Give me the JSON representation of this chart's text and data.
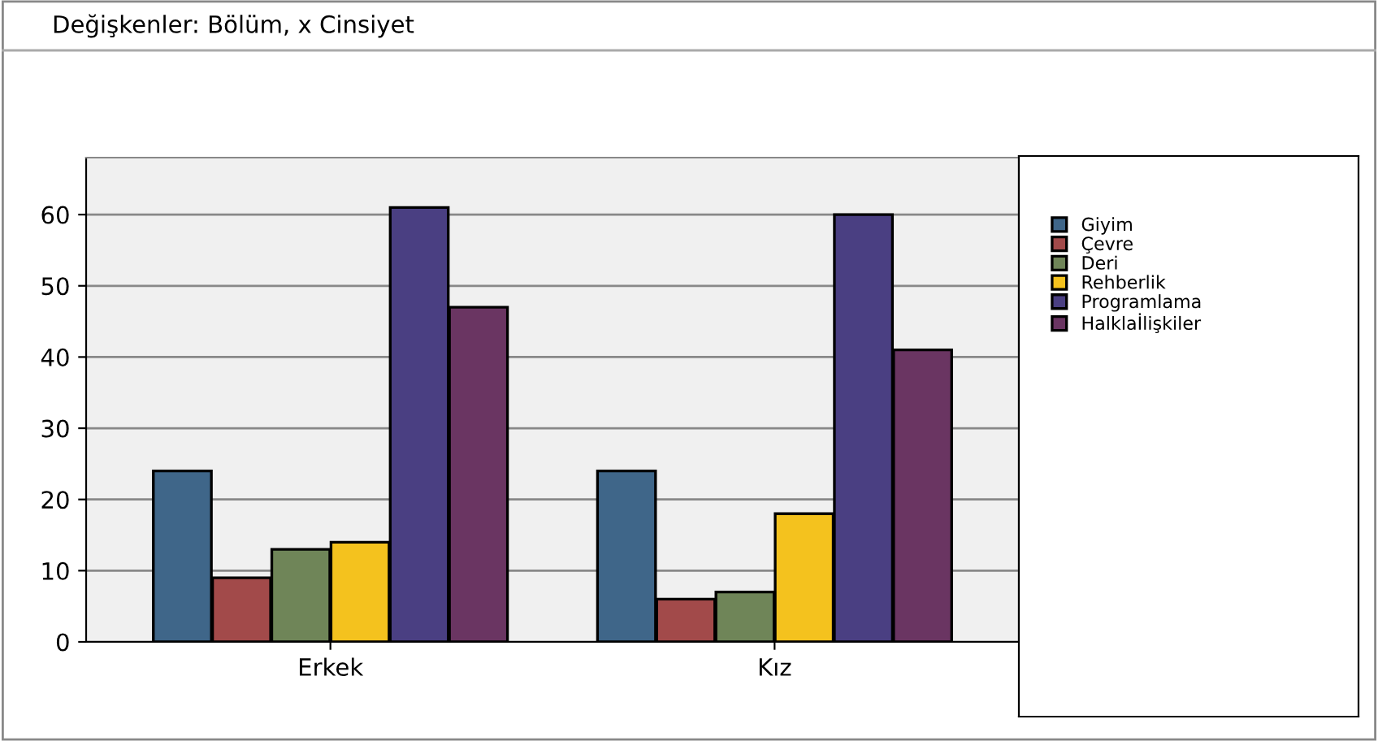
{
  "chart_data": {
    "type": "bar",
    "title": "Değişkenler: Bölüm, x Cinsiyet",
    "categories": [
      "Erkek",
      "Kız"
    ],
    "series": [
      {
        "name": "Giyim",
        "color": "#3f6689",
        "values": [
          24,
          24
        ]
      },
      {
        "name": "Çevre",
        "color": "#a24a4a",
        "values": [
          9,
          6
        ]
      },
      {
        "name": "Deri",
        "color": "#6f8558",
        "values": [
          13,
          7
        ]
      },
      {
        "name": "Rehberlik",
        "color": "#f4c21e",
        "values": [
          14,
          18
        ]
      },
      {
        "name": "Programlama",
        "color": "#4a3f82",
        "values": [
          61,
          60
        ]
      },
      {
        "name": "Halklaİlişkiler",
        "color": "#6a3562",
        "values": [
          47,
          41
        ]
      }
    ],
    "ylim": [
      0,
      68
    ],
    "yticks": [
      0,
      10,
      20,
      30,
      40,
      50,
      60
    ],
    "grid": "y",
    "legend": "right"
  }
}
